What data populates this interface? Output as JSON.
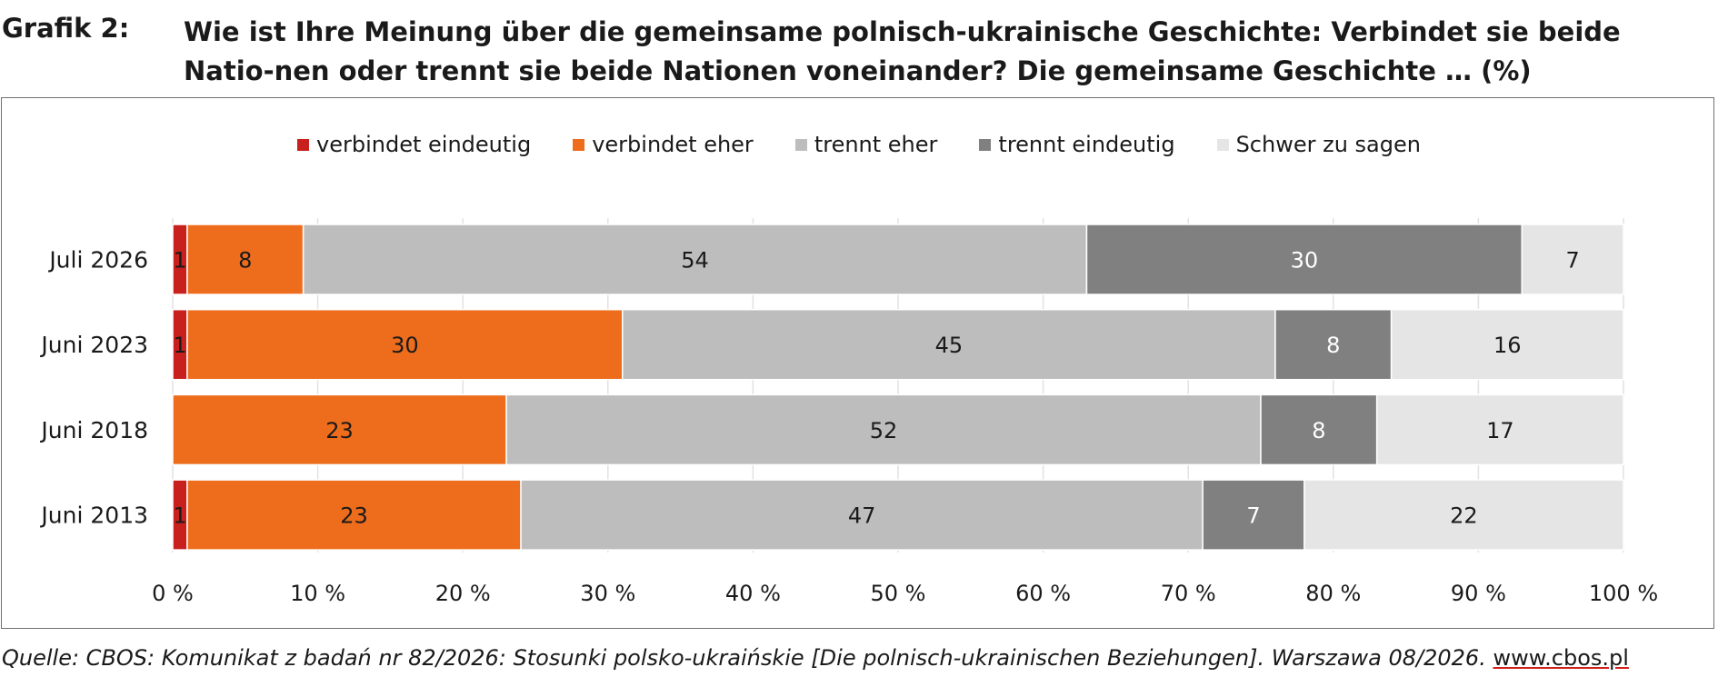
{
  "header": {
    "label": "Grafik 2:",
    "title": "Wie ist Ihre Meinung über die gemeinsame polnisch-ukrainische Geschichte: Verbindet sie beide Natio-nen oder trennt sie beide Nationen voneinander? Die gemeinsame Geschichte … (%)"
  },
  "chart_data": {
    "type": "bar",
    "orientation": "horizontal",
    "stacked": true,
    "categories": [
      "Juli 2026",
      "Juni 2023",
      "Juni 2018",
      "Juni 2013"
    ],
    "series": [
      {
        "name": "verbindet eindeutig",
        "color": "#c8201d",
        "values": [
          1,
          1,
          0,
          1
        ]
      },
      {
        "name": "verbindet eher",
        "color": "#ee6d1d",
        "values": [
          8,
          30,
          23,
          23
        ]
      },
      {
        "name": "trennt eher",
        "color": "#bdbdbd",
        "values": [
          54,
          45,
          52,
          47
        ]
      },
      {
        "name": "trennt eindeutig",
        "color": "#808080",
        "values": [
          30,
          8,
          8,
          7
        ]
      },
      {
        "name": "Schwer zu sagen",
        "color": "#e5e5e5",
        "values": [
          7,
          16,
          17,
          22
        ]
      }
    ],
    "xlim": [
      0,
      100
    ],
    "x_ticks": [
      "0 %",
      "10 %",
      "20 %",
      "30 %",
      "40 %",
      "50 %",
      "60 %",
      "70 %",
      "80 %",
      "90 %",
      "100 %"
    ],
    "grid": true,
    "legend_position": "top"
  },
  "source": {
    "text": "Quelle: CBOS: Komunikat z badań nr 82/2026: Stosunki polsko-ukraińskie [Die polnisch-ukrainischen Beziehungen]. Warszawa 08/2026.",
    "link": "www.cbos.pl"
  }
}
